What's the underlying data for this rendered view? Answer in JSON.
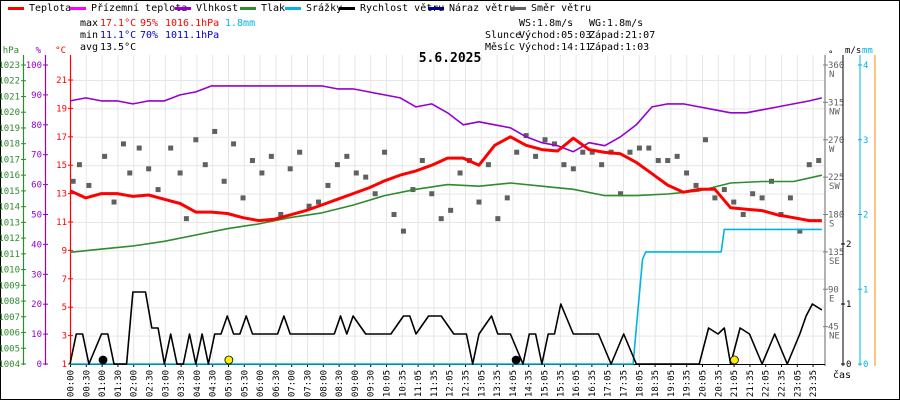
{
  "legend": [
    {
      "label": "Teplota",
      "color": "#ff0000"
    },
    {
      "label": "Přízemní teplota",
      "color": "#ff00ff"
    },
    {
      "label": "Vlhkost",
      "color": "#9400d3"
    },
    {
      "label": "Tlak",
      "color": "#2e8b2e"
    },
    {
      "label": "Srážky",
      "color": "#00b4e6"
    },
    {
      "label": "Rychlost větru",
      "color": "#000000"
    },
    {
      "label": "Náraz větru",
      "color": "#00008b"
    },
    {
      "label": "Směr větru",
      "color": "#606060"
    }
  ],
  "stats": {
    "max_label": "max",
    "max_temp": "17.1°C",
    "max_hum": "95%",
    "max_press": "1016.1hPa",
    "max_rain": "1.8mm",
    "min_label": "min",
    "min_temp": "11.1°C",
    "min_hum": "70%",
    "min_press": "1011.1hPa",
    "avg_label": "avg",
    "avg_temp": "13.5°C",
    "ws": "WS:1.8m/s",
    "wg": "WG:1.8m/s",
    "sun_label": "Slunce",
    "sun_rise": "Východ:05:03",
    "sun_set": "Západ:21:07",
    "moon_label": "Měsíc",
    "moon_rise": "Východ:14:11",
    "moon_set": "Západ:1:03"
  },
  "colors": {
    "temp": "#ff0000",
    "hum": "#9400d3",
    "press": "#2e8b2e",
    "rain": "#00b4e6",
    "wind": "#000000",
    "dir": "#606060",
    "grid": "#e6e6e6",
    "sun": "#ffee00",
    "moon": "#000000",
    "rain_axis_line": "#ff8c00"
  },
  "chart_data": {
    "type": "line",
    "title": "5.6.2025",
    "xlabel": "čas",
    "x_ticks": [
      "00:00",
      "00:30",
      "01:00",
      "01:30",
      "02:00",
      "02:30",
      "03:00",
      "03:30",
      "04:00",
      "04:30",
      "05:00",
      "05:30",
      "06:00",
      "06:30",
      "07:00",
      "07:30",
      "08:00",
      "08:30",
      "09:00",
      "09:30",
      "10:05",
      "10:35",
      "11:05",
      "11:35",
      "12:05",
      "12:35",
      "13:05",
      "13:35",
      "14:05",
      "14:35",
      "15:05",
      "15:35",
      "16:05",
      "16:35",
      "17:05",
      "17:35",
      "18:05",
      "18:35",
      "19:05",
      "19:35",
      "20:05",
      "20:35",
      "21:05",
      "21:35",
      "22:05",
      "22:35",
      "23:05",
      "23:35"
    ],
    "axes": {
      "hPa": {
        "label": "hPa",
        "range": [
          1004,
          1023
        ],
        "ticks": [
          1004,
          1005,
          1006,
          1007,
          1008,
          1009,
          1010,
          1011,
          1012,
          1013,
          1014,
          1015,
          1016,
          1017,
          1018,
          1019,
          1020,
          1021,
          1022,
          1023
        ]
      },
      "pct": {
        "label": "%",
        "range": [
          0,
          100
        ],
        "ticks": [
          0,
          10,
          20,
          30,
          40,
          50,
          60,
          70,
          80,
          90,
          100
        ]
      },
      "degC": {
        "label": "°C",
        "range": [
          1,
          21
        ],
        "ticks": [
          1,
          3,
          5,
          7,
          9,
          11,
          13,
          15,
          17,
          19,
          21
        ]
      },
      "deg": {
        "label": "°",
        "range": [
          0,
          360
        ],
        "ticks": [
          {
            "v": 45,
            "t": "NE"
          },
          {
            "v": 90,
            "t": "E"
          },
          {
            "v": 135,
            "t": "SE"
          },
          {
            "v": 180,
            "t": "S"
          },
          {
            "v": 225,
            "t": "SW"
          },
          {
            "v": 270,
            "t": "W"
          },
          {
            "v": 315,
            "t": "NW"
          },
          {
            "v": 360,
            "t": "N"
          }
        ]
      },
      "ms": {
        "label": "m/s",
        "range": [
          0,
          2.5
        ],
        "ticks": [
          0,
          1,
          2
        ]
      },
      "mm": {
        "label": "mm",
        "range": [
          0,
          4
        ],
        "ticks": [
          0,
          1,
          2,
          3,
          4
        ]
      }
    },
    "series": [
      {
        "name": "Teplota",
        "unit": "°C",
        "hours": [
          0,
          0.5,
          1,
          1.5,
          2,
          2.5,
          3,
          3.5,
          4,
          4.5,
          5,
          5.5,
          6,
          6.5,
          7,
          7.5,
          8,
          8.5,
          9,
          9.5,
          10,
          10.5,
          11,
          11.5,
          12,
          12.5,
          13,
          13.5,
          14,
          14.5,
          15,
          15.5,
          16,
          16.5,
          17,
          17.5,
          18,
          18.5,
          19,
          19.5,
          20,
          20.5,
          21,
          21.5,
          22,
          22.5,
          23,
          23.5,
          23.9
        ],
        "values": [
          13.2,
          12.7,
          13.0,
          13.0,
          12.8,
          12.9,
          12.6,
          12.3,
          11.7,
          11.7,
          11.6,
          11.3,
          11.1,
          11.2,
          11.5,
          11.8,
          12.2,
          12.6,
          13.0,
          13.4,
          13.9,
          14.3,
          14.6,
          15.0,
          15.5,
          15.5,
          15.0,
          16.4,
          17.0,
          16.4,
          16.1,
          16.0,
          16.9,
          16.1,
          15.9,
          15.8,
          15.2,
          14.4,
          13.6,
          13.1,
          13.3,
          13.3,
          12.0,
          11.9,
          11.8,
          11.5,
          11.3,
          11.1,
          11.1
        ]
      },
      {
        "name": "Vlhkost",
        "unit": "%",
        "hours": [
          0,
          0.5,
          1,
          1.5,
          2,
          2.5,
          3,
          3.5,
          4,
          4.5,
          5,
          5.5,
          6,
          6.5,
          7,
          7.5,
          8,
          8.5,
          9,
          9.5,
          10,
          10.5,
          11,
          11.5,
          12,
          12.5,
          13,
          13.5,
          14,
          14.5,
          15,
          15.5,
          16,
          16.5,
          17,
          17.5,
          18,
          18.5,
          19,
          19.5,
          20,
          20.5,
          21,
          21.5,
          22,
          22.5,
          23,
          23.5,
          23.9
        ],
        "values": [
          88,
          89,
          88,
          88,
          87,
          88,
          88,
          90,
          91,
          93,
          93,
          93,
          93,
          93,
          93,
          93,
          93,
          92,
          92,
          91,
          90,
          89,
          86,
          87,
          84,
          80,
          81,
          80,
          79,
          76,
          74,
          73,
          71,
          74,
          73,
          76,
          80,
          86,
          87,
          87,
          86,
          85,
          84,
          84,
          85,
          86,
          87,
          88,
          89
        ]
      },
      {
        "name": "Tlak",
        "unit": "hPa",
        "hours": [
          0,
          1,
          2,
          3,
          4,
          5,
          6,
          7,
          8,
          9,
          10,
          11,
          12,
          13,
          14,
          15,
          16,
          17,
          18,
          19,
          20,
          21,
          22,
          23,
          23.9
        ],
        "values": [
          1011.1,
          1011.3,
          1011.5,
          1011.8,
          1012.2,
          1012.6,
          1012.9,
          1013.3,
          1013.6,
          1014.1,
          1014.7,
          1015.1,
          1015.4,
          1015.3,
          1015.5,
          1015.3,
          1015.1,
          1014.7,
          1014.7,
          1014.8,
          1015.0,
          1015.5,
          1015.6,
          1015.6,
          1016.0
        ]
      },
      {
        "name": "Srážky",
        "unit": "mm",
        "hours": [
          0,
          17.9,
          18.05,
          18.2,
          18.3,
          20.7,
          20.8,
          23.9
        ],
        "values": [
          0,
          0,
          0.7,
          1.4,
          1.5,
          1.5,
          1.8,
          1.8
        ]
      },
      {
        "name": "Rychlost větru",
        "unit": "m/s",
        "hours": [
          0,
          0.2,
          0.4,
          0.6,
          1.0,
          1.2,
          1.4,
          1.6,
          1.8,
          2.0,
          2.4,
          2.6,
          2.8,
          3.0,
          3.2,
          3.4,
          3.6,
          3.8,
          4.0,
          4.2,
          4.4,
          4.6,
          4.8,
          5.0,
          5.2,
          5.4,
          5.6,
          5.8,
          6.0,
          6.4,
          6.6,
          6.8,
          7.0,
          7.4,
          7.6,
          7.8,
          8.0,
          8.4,
          8.6,
          8.8,
          9.0,
          9.4,
          9.8,
          10.2,
          10.6,
          10.8,
          11.0,
          11.4,
          11.8,
          12.2,
          12.6,
          12.8,
          13.0,
          13.4,
          13.6,
          14.0,
          14.4,
          14.6,
          14.8,
          15.0,
          15.2,
          15.4,
          15.6,
          16.0,
          16.4,
          16.8,
          17.2,
          17.6,
          18.0,
          18.4,
          18.8,
          19.2,
          19.6,
          20.0,
          20.3,
          20.6,
          20.8,
          21.0,
          21.3,
          21.6,
          22.0,
          22.4,
          22.8,
          23.2,
          23.4,
          23.6,
          23.9
        ],
        "values": [
          0,
          0.5,
          0.5,
          0,
          0.5,
          0.5,
          0,
          0,
          0,
          1.2,
          1.2,
          0.6,
          0.6,
          0,
          0.5,
          0,
          0,
          0.5,
          0,
          0.5,
          0,
          0.5,
          0.5,
          0.8,
          0.5,
          0.5,
          0.8,
          0.5,
          0.5,
          0.5,
          0.5,
          0.8,
          0.5,
          0.5,
          0.5,
          0.5,
          0.5,
          0.5,
          0.8,
          0.5,
          0.8,
          0.5,
          0.5,
          0.5,
          0.8,
          0.8,
          0.5,
          0.8,
          0.8,
          0.5,
          0.5,
          0,
          0.5,
          0.8,
          0.5,
          0.5,
          0,
          0.5,
          0.5,
          0,
          0.5,
          0.5,
          1.0,
          0.5,
          0.5,
          0.5,
          0,
          0.5,
          0,
          0,
          0,
          0,
          0,
          0,
          0.6,
          0.5,
          0.6,
          0,
          0.6,
          0.5,
          0,
          0.5,
          0,
          0.5,
          0.8,
          1.0,
          0.9
        ]
      }
    ],
    "wind_direction_deg": {
      "hours": [
        0.1,
        0.3,
        0.6,
        1.1,
        1.4,
        1.7,
        1.9,
        2.2,
        2.5,
        2.8,
        3.2,
        3.5,
        3.7,
        4.0,
        4.3,
        4.6,
        4.9,
        5.2,
        5.5,
        5.8,
        6.1,
        6.4,
        6.7,
        7.0,
        7.3,
        7.6,
        7.9,
        8.2,
        8.5,
        8.8,
        9.1,
        9.4,
        9.7,
        10.0,
        10.3,
        10.6,
        10.9,
        11.2,
        11.5,
        11.8,
        12.1,
        12.4,
        12.7,
        13.0,
        13.3,
        13.6,
        13.9,
        14.2,
        14.5,
        14.8,
        15.1,
        15.4,
        15.7,
        16.0,
        16.3,
        16.6,
        16.9,
        17.2,
        17.5,
        17.8,
        18.1,
        18.4,
        18.7,
        19.0,
        19.3,
        19.6,
        19.9,
        20.2,
        20.5,
        20.8,
        21.1,
        21.4,
        21.7,
        22.0,
        22.3,
        22.6,
        22.9,
        23.2,
        23.5,
        23.8
      ],
      "values": [
        220,
        240,
        215,
        250,
        195,
        265,
        230,
        260,
        235,
        210,
        260,
        230,
        175,
        270,
        240,
        280,
        220,
        265,
        200,
        245,
        230,
        250,
        180,
        235,
        255,
        190,
        195,
        215,
        240,
        250,
        230,
        225,
        205,
        255,
        180,
        160,
        210,
        245,
        205,
        175,
        185,
        230,
        245,
        195,
        240,
        175,
        200,
        255,
        275,
        250,
        270,
        265,
        240,
        235,
        255,
        255,
        240,
        255,
        205,
        255,
        260,
        260,
        245,
        245,
        250,
        230,
        215,
        270,
        200,
        210,
        195,
        180,
        205,
        200,
        220,
        180,
        200,
        160,
        240,
        245
      ]
    },
    "markers": [
      {
        "name": "moon-set",
        "hour": 1.05,
        "type": "moon"
      },
      {
        "name": "sun-rise",
        "hour": 5.05,
        "type": "sun"
      },
      {
        "name": "moon-rise",
        "hour": 14.18,
        "type": "moon"
      },
      {
        "name": "sun-set",
        "hour": 21.12,
        "type": "sun"
      }
    ]
  }
}
